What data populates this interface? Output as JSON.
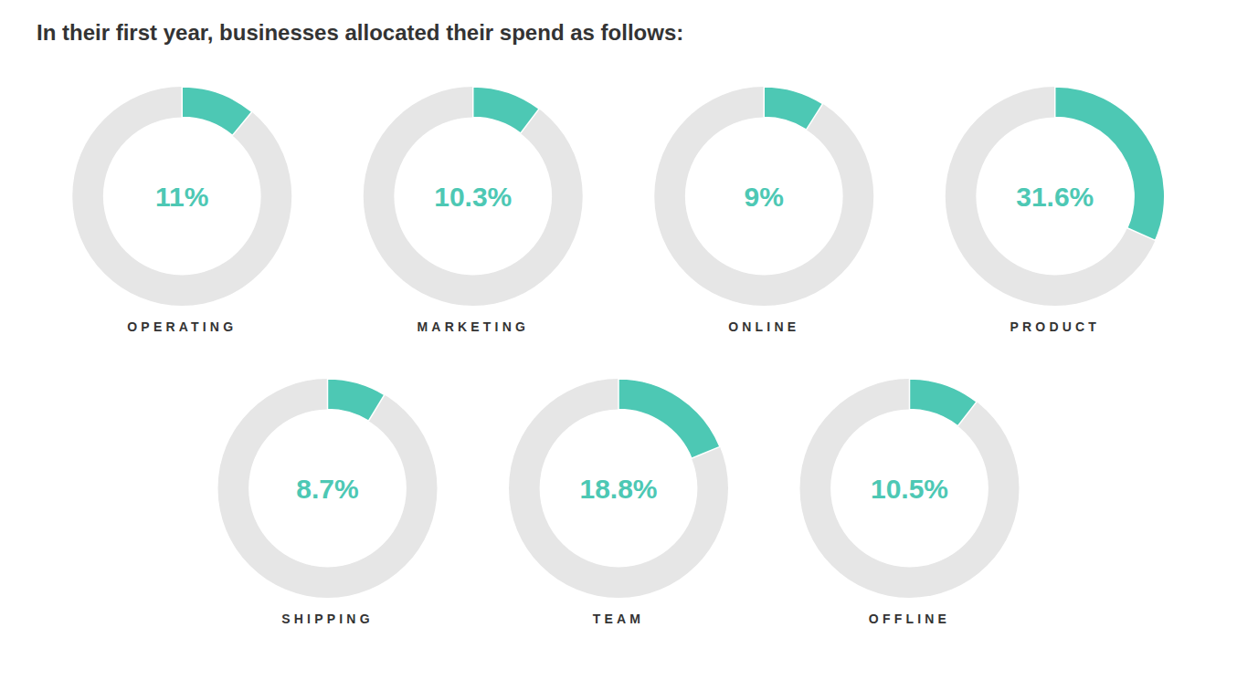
{
  "chart_data": {
    "type": "donut",
    "title": "In their first year, businesses allocated their spend as follows:",
    "categories": [
      "OPERATING",
      "MARKETING",
      "ONLINE",
      "PRODUCT",
      "SHIPPING",
      "TEAM",
      "OFFLINE"
    ],
    "values": [
      11.0,
      10.3,
      9.0,
      31.6,
      8.7,
      18.8,
      10.5
    ],
    "value_labels": [
      "11%",
      "10.3%",
      "9%",
      "31.6%",
      "8.7%",
      "18.8%",
      "10.5%"
    ],
    "data_labels": true,
    "ylim": [
      0,
      100
    ],
    "color": "#4dc8b4"
  }
}
